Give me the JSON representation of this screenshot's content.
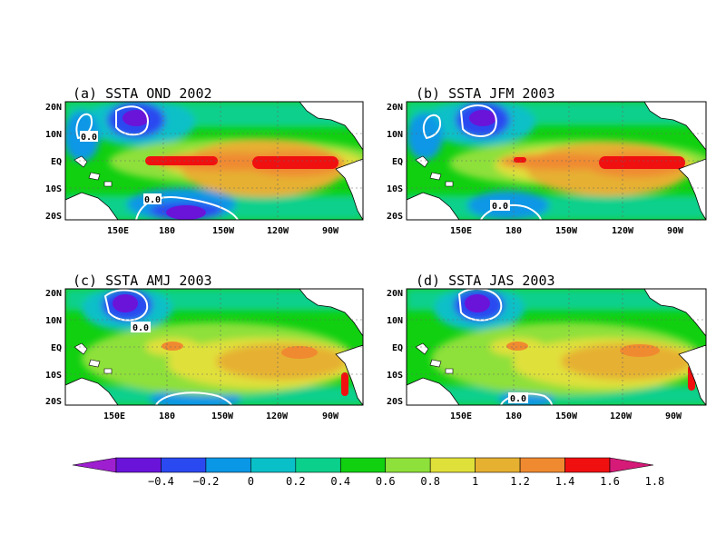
{
  "figure": {
    "panels": [
      {
        "id": "a",
        "title": "(a) SSTA OND 2002",
        "x_ticks": [
          "150E",
          "180",
          "150W",
          "120W",
          "90W"
        ],
        "y_ticks": [
          "20N",
          "10N",
          "EQ",
          "10S",
          "20S"
        ],
        "contour_labels": [
          "0.0",
          "0.0"
        ]
      },
      {
        "id": "b",
        "title": "(b) SSTA JFM 2003",
        "x_ticks": [
          "150E",
          "180",
          "150W",
          "120W",
          "90W"
        ],
        "y_ticks": [
          "20N",
          "10N",
          "EQ",
          "10S",
          "20S"
        ],
        "contour_labels": [
          "0.0"
        ]
      },
      {
        "id": "c",
        "title": "(c) SSTA AMJ 2003",
        "x_ticks": [
          "150E",
          "180",
          "150W",
          "120W",
          "90W"
        ],
        "y_ticks": [
          "20N",
          "10N",
          "EQ",
          "10S",
          "20S"
        ],
        "contour_labels": [
          "0.0"
        ]
      },
      {
        "id": "d",
        "title": "(d) SSTA JAS 2003",
        "x_ticks": [
          "150E",
          "180",
          "150W",
          "120W",
          "90W"
        ],
        "y_ticks": [
          "20N",
          "10N",
          "EQ",
          "10S",
          "20S"
        ],
        "contour_labels": [
          "0.0"
        ]
      }
    ],
    "colorbar": {
      "labels": [
        "-0.4",
        "-0.2",
        "0",
        "0.2",
        "0.4",
        "0.6",
        "0.8",
        "1",
        "1.2",
        "1.4",
        "1.6",
        "1.8"
      ],
      "colors": [
        "#9e1fd0",
        "#6a14d9",
        "#2a49f0",
        "#0a97e6",
        "#0ac0c8",
        "#0ad08c",
        "#10d010",
        "#8ee03a",
        "#e0e03a",
        "#e6b030",
        "#f08a30",
        "#f01010",
        "#d61a78"
      ]
    },
    "land_color": "#ffffff",
    "contour_color": "#ffffff"
  }
}
